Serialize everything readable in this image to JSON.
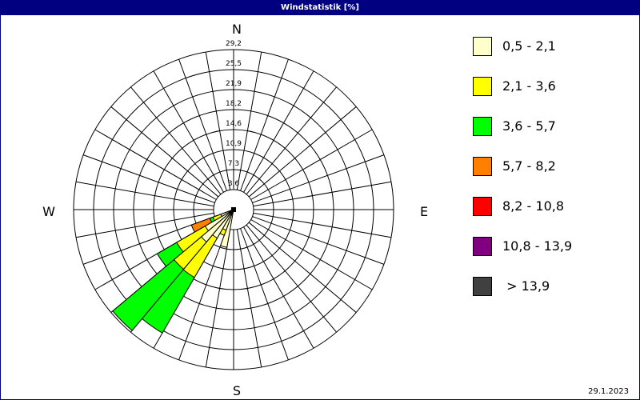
{
  "title": "Windstatistik [%]",
  "date": "29.1.2023",
  "chart_data": {
    "type": "wind-rose",
    "title": "Windstatistik [%]",
    "compass_labels": {
      "N": "N",
      "E": "E",
      "S": "S",
      "W": "W"
    },
    "ring_labels": [
      "3,6",
      "7,3",
      "10,9",
      "14,6",
      "18,2",
      "21,9",
      "25,5",
      "29,2"
    ],
    "rmax": 29.2,
    "sector_width_deg": 10,
    "classes": [
      {
        "name": "0,5 - 2,1",
        "color": "#FFFFCC"
      },
      {
        "name": "2,1 - 3,6",
        "color": "#FFFF00"
      },
      {
        "name": "3,6 - 5,7",
        "color": "#00FF00"
      },
      {
        "name": "5,7 - 8,2",
        "color": "#FF8000"
      },
      {
        "name": "8,2 - 10,8",
        "color": "#FF0000"
      },
      {
        "name": "10,8 - 13,9",
        "color": "#800080"
      },
      {
        "name": " > 13,9",
        "color": "#404040"
      }
    ],
    "sectors_cumulative_percent": [
      {
        "direction": 190,
        "values": [
          7.0,
          7.0,
          7.0,
          7.0,
          7.0,
          7.0,
          7.0
        ]
      },
      {
        "direction": 200,
        "values": [
          4.0,
          5.0,
          5.0,
          5.0,
          5.0,
          5.0,
          5.0
        ]
      },
      {
        "direction": 210,
        "values": [
          6.0,
          14.3,
          26.0,
          26.0,
          26.0,
          26.0,
          26.0
        ]
      },
      {
        "direction": 220,
        "values": [
          7.7,
          14.2,
          28.8,
          28.8,
          28.8,
          28.8,
          28.8
        ]
      },
      {
        "direction": 230,
        "values": [
          6.0,
          12.0,
          16.1,
          16.1,
          16.1,
          16.1,
          16.1
        ]
      },
      {
        "direction": 240,
        "values": [
          2.5,
          4.0,
          4.6,
          8.2,
          8.2,
          8.2,
          8.2
        ]
      }
    ]
  }
}
